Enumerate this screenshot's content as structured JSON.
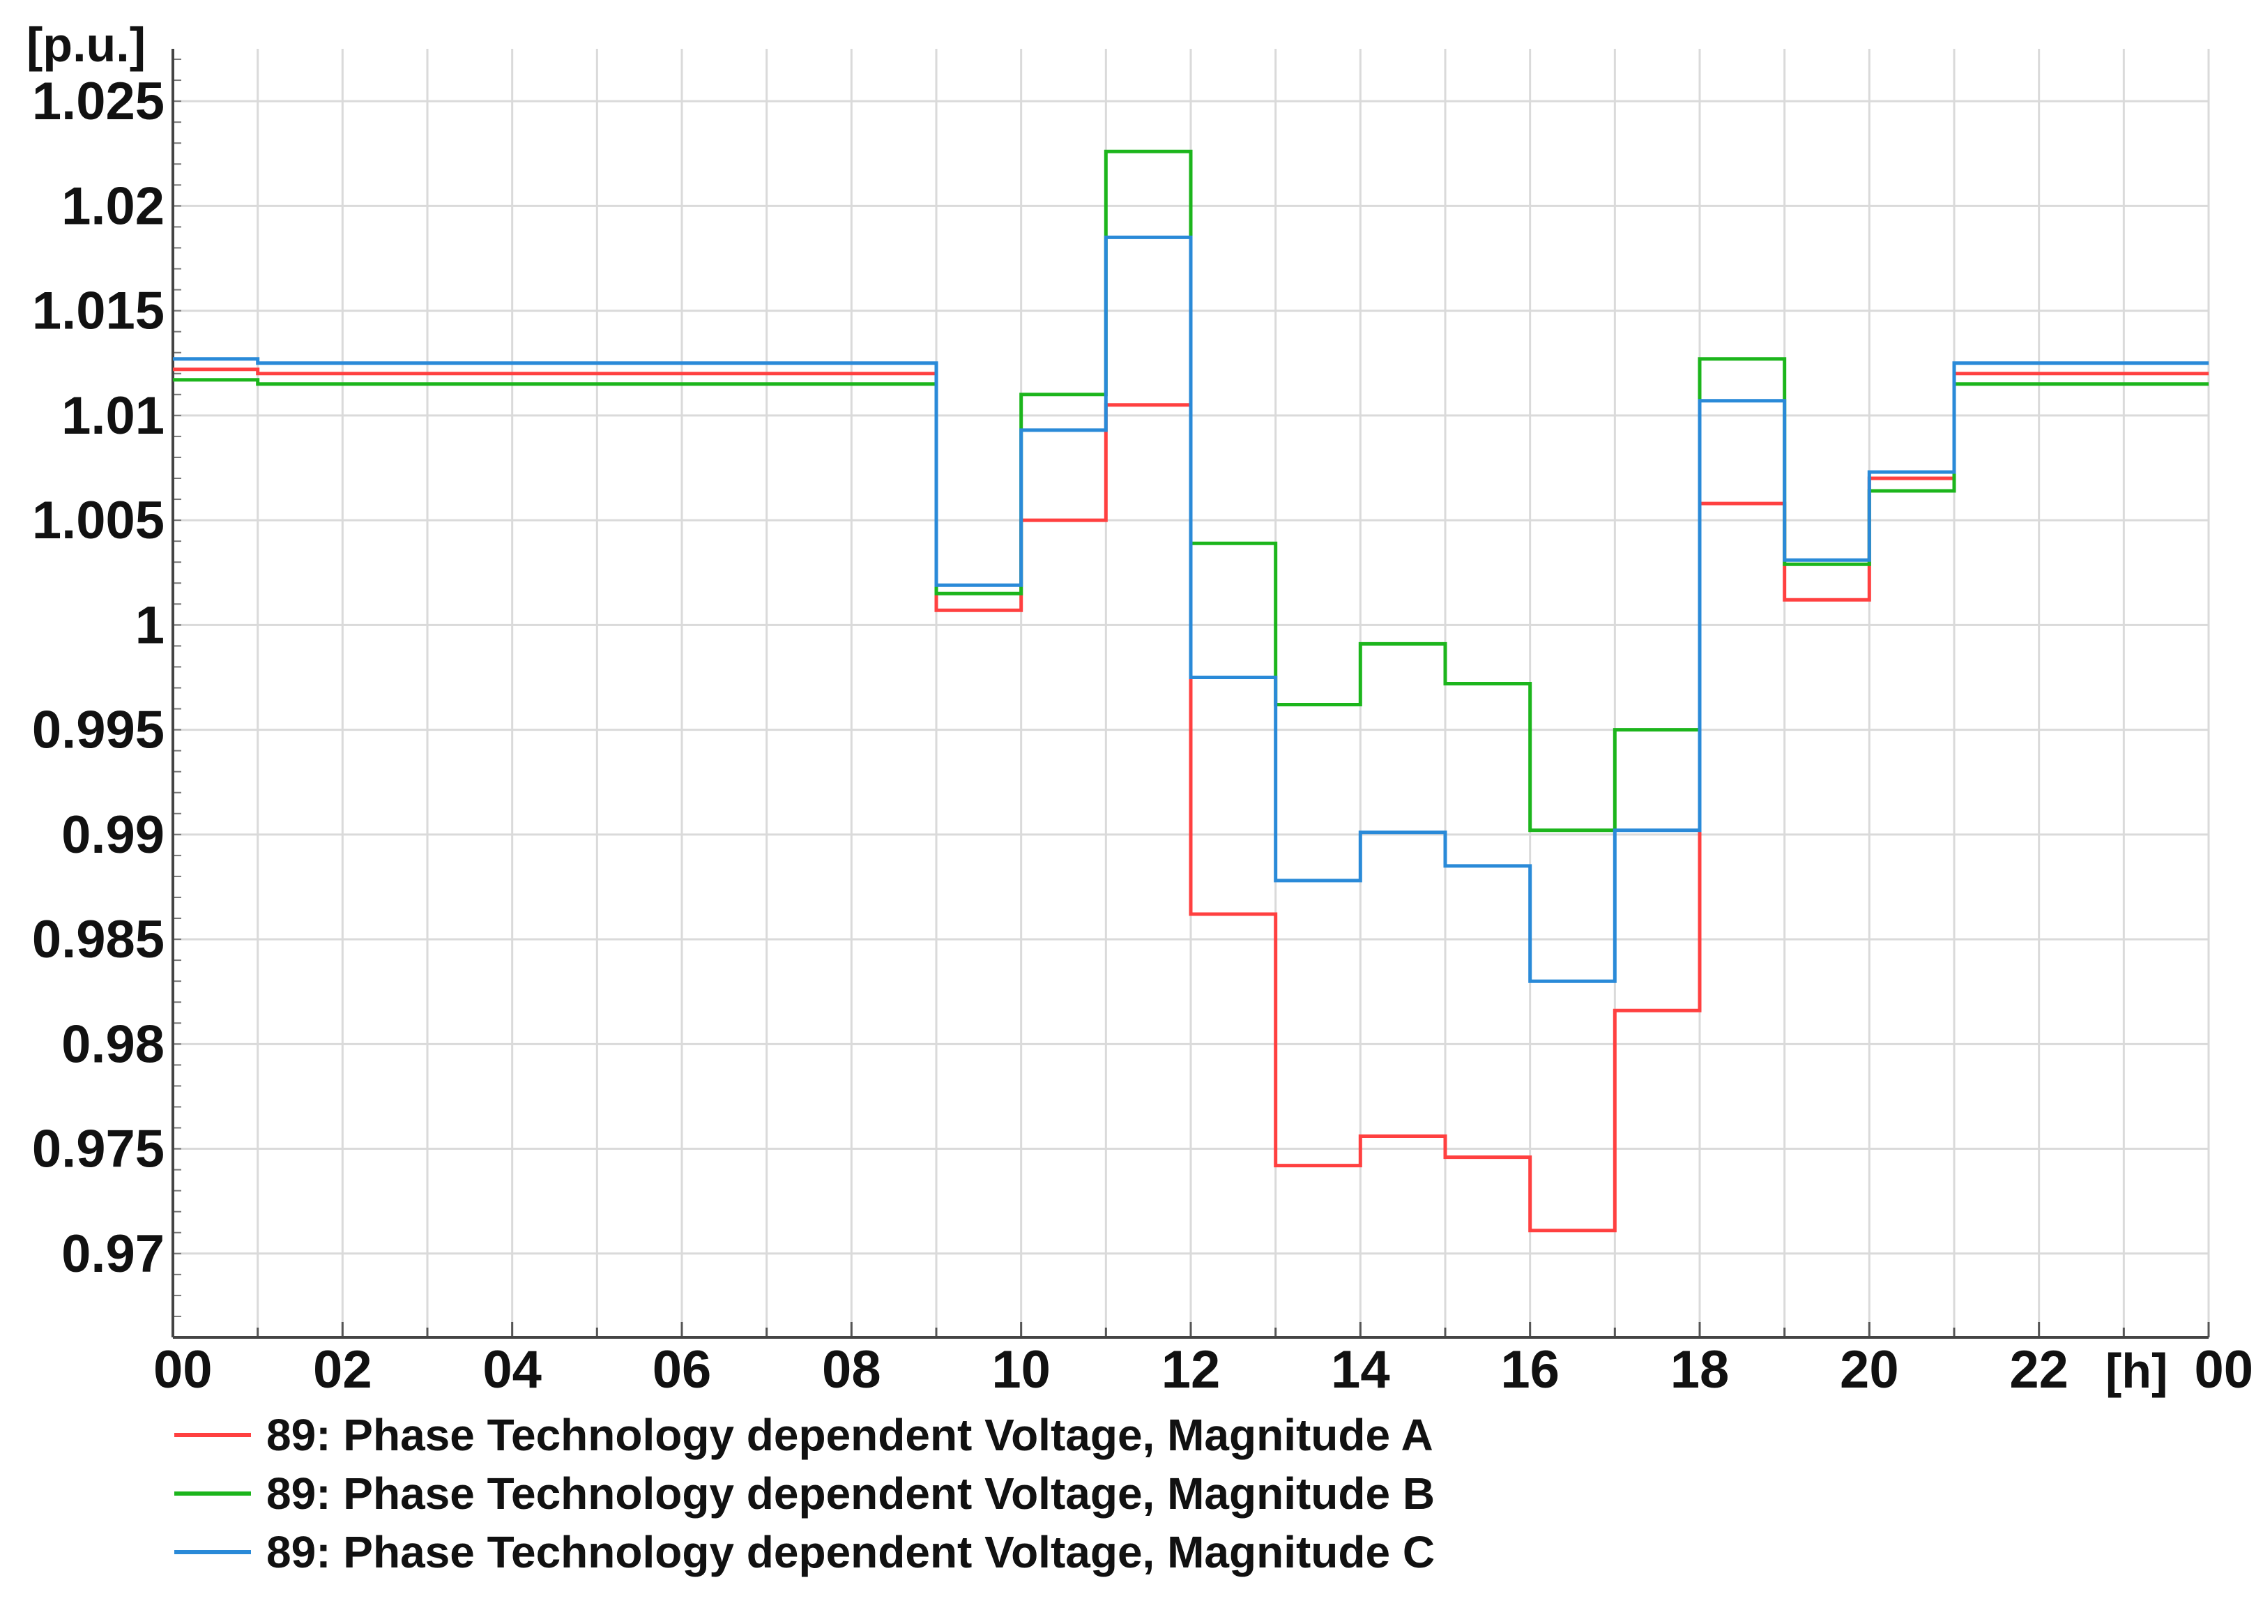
{
  "chart_data": {
    "type": "line",
    "step": "post",
    "y_unit_label": "[p.u.]",
    "x_unit_label": "[h]",
    "x_tick_labels": [
      "00",
      "02",
      "04",
      "06",
      "08",
      "10",
      "12",
      "14",
      "16",
      "18",
      "20",
      "22",
      "00"
    ],
    "y_tick_labels": [
      "1.025",
      "1.02",
      "1.015",
      "1.01",
      "1.005",
      "1",
      "0.995",
      "0.99",
      "0.985",
      "0.98",
      "0.975",
      "0.97"
    ],
    "y_ticks": [
      1.025,
      1.02,
      1.015,
      1.01,
      1.005,
      1.0,
      0.995,
      0.99,
      0.985,
      0.98,
      0.975,
      0.97
    ],
    "xlim": [
      0,
      24
    ],
    "ylim": [
      0.966,
      1.0275
    ],
    "grid": true,
    "legend_position": "bottom",
    "x_hours": [
      0,
      1,
      2,
      3,
      4,
      5,
      6,
      7,
      8,
      9,
      10,
      11,
      12,
      13,
      14,
      15,
      16,
      17,
      18,
      19,
      20,
      21,
      22,
      23,
      24
    ],
    "series": [
      {
        "name": "89: Phase Technology dependent Voltage, Magnitude A",
        "color": "#ff4040",
        "values": [
          1.0122,
          1.012,
          1.012,
          1.012,
          1.012,
          1.012,
          1.012,
          1.012,
          1.012,
          1.0007,
          1.005,
          1.0105,
          0.9862,
          0.9742,
          0.9756,
          0.9746,
          0.9711,
          0.9816,
          1.0058,
          1.0012,
          1.007,
          1.012,
          1.012,
          1.012,
          1.012
        ]
      },
      {
        "name": "89: Phase Technology dependent Voltage, Magnitude B",
        "color": "#1cb51c",
        "values": [
          1.0117,
          1.0115,
          1.0115,
          1.0115,
          1.0115,
          1.0115,
          1.0115,
          1.0115,
          1.0115,
          1.0015,
          1.011,
          1.0226,
          1.0039,
          0.9962,
          0.9991,
          0.9972,
          0.9902,
          0.995,
          1.0127,
          1.0029,
          1.0064,
          1.0115,
          1.0115,
          1.0115,
          1.0115
        ]
      },
      {
        "name": "89: Phase Technology dependent Voltage, Magnitude C",
        "color": "#2a8ad8",
        "values": [
          1.0127,
          1.0125,
          1.0125,
          1.0125,
          1.0125,
          1.0125,
          1.0125,
          1.0125,
          1.0125,
          1.0019,
          1.0093,
          1.0185,
          0.9975,
          0.9878,
          0.9901,
          0.9885,
          0.983,
          0.9902,
          1.0107,
          1.0031,
          1.0073,
          1.0125,
          1.0125,
          1.0125,
          1.0125
        ]
      }
    ]
  }
}
